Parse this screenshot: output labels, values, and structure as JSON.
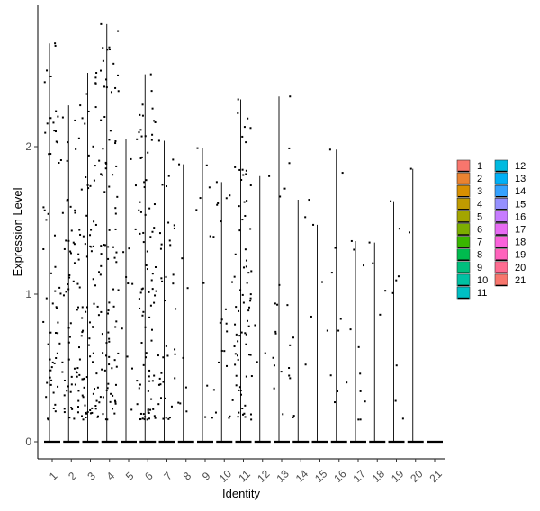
{
  "chart_data": {
    "type": "violin",
    "xlabel": "Identity",
    "ylabel": "Expression Level",
    "categories": [
      "1",
      "2",
      "3",
      "4",
      "5",
      "6",
      "7",
      "8",
      "9",
      "10",
      "11",
      "12",
      "13",
      "14",
      "15",
      "16",
      "17",
      "18",
      "19",
      "20",
      "21"
    ],
    "ylim": [
      -0.12,
      2.86
    ],
    "yticks": [
      0,
      1,
      2
    ],
    "max_values": [
      2.7,
      2.28,
      2.5,
      2.83,
      2.05,
      2.49,
      2.04,
      1.88,
      1.99,
      1.76,
      2.32,
      1.8,
      2.34,
      1.64,
      1.47,
      1.98,
      1.36,
      1.35,
      1.63,
      1.85,
      0.0
    ],
    "nonzero_point_counts": [
      60,
      70,
      80,
      90,
      15,
      85,
      40,
      8,
      12,
      20,
      75,
      4,
      20,
      6,
      4,
      10,
      10,
      4,
      8,
      2,
      0
    ],
    "legend": {
      "entries": [
        "1",
        "2",
        "3",
        "4",
        "5",
        "6",
        "7",
        "8",
        "9",
        "10",
        "11",
        "12",
        "13",
        "14",
        "15",
        "16",
        "17",
        "18",
        "19",
        "20",
        "21"
      ],
      "colors": [
        "#F8766D",
        "#EA8331",
        "#D89000",
        "#C09B00",
        "#A3A500",
        "#7CAE00",
        "#39B600",
        "#00BB4E",
        "#00BF7D",
        "#00C1A3",
        "#00BFC4",
        "#00BAE0",
        "#00B0F6",
        "#35A2FF",
        "#9590FF",
        "#C77CFF",
        "#E76BF3",
        "#FA62DB",
        "#FF62BC",
        "#FF6C91",
        "#F8766D"
      ],
      "placement": "right"
    },
    "grid": false
  }
}
